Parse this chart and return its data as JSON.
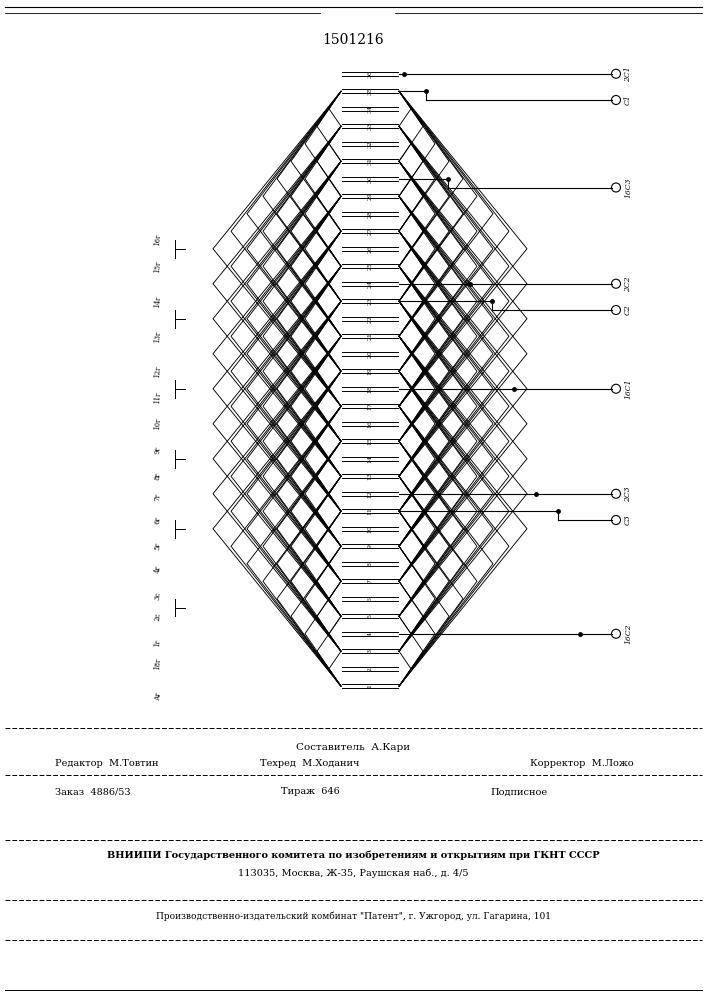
{
  "patent_number": "1501216",
  "left_labels": [
    [
      "Аг",
      0.5
    ],
    [
      "18г",
      2.3
    ],
    [
      "1г",
      3.5
    ],
    [
      "2с",
      5.0
    ],
    [
      "3с",
      6.2
    ],
    [
      "4г",
      7.7
    ],
    [
      "5г",
      9.0
    ],
    [
      "6г",
      10.5
    ],
    [
      "7г",
      11.8
    ],
    [
      "8г",
      13.0
    ],
    [
      "9г",
      14.5
    ],
    [
      "10г",
      16.0
    ],
    [
      "11г",
      17.5
    ],
    [
      "12г",
      19.0
    ],
    [
      "13г",
      21.0
    ],
    [
      "14г",
      23.0
    ],
    [
      "15г",
      25.0
    ],
    [
      "16г",
      26.5
    ]
  ],
  "bracket_slots": [
    5.5,
    10.0,
    14.0,
    18.0,
    22.0,
    26.0
  ],
  "slot_count": 36,
  "coil_pitches": [
    {
      "pitch": 2,
      "depth": 12,
      "step": 2
    },
    {
      "pitch": 4,
      "depth": 24,
      "step": 2
    },
    {
      "pitch": 6,
      "depth": 36,
      "step": 2
    },
    {
      "pitch": 8,
      "depth": 50,
      "step": 2
    },
    {
      "pitch": 10,
      "depth": 64,
      "step": 2
    },
    {
      "pitch": 12,
      "depth": 78,
      "step": 2
    },
    {
      "pitch": 14,
      "depth": 94,
      "step": 2
    },
    {
      "pitch": 16,
      "depth": 110,
      "step": 2
    },
    {
      "pitch": 18,
      "depth": 128,
      "step": 2
    }
  ],
  "right_connections": [
    {
      "label": "2С1",
      "tap_slot": 36,
      "term_slot": 36.0
    },
    {
      "label": "С1",
      "tap_slot": 35,
      "term_slot": 34.5
    },
    {
      "label": "16С3",
      "tap_slot": 30,
      "term_slot": 29.5
    },
    {
      "label": "2С2",
      "tap_slot": 24,
      "term_slot": 24.0
    },
    {
      "label": "С2",
      "tap_slot": 23,
      "term_slot": 22.5
    },
    {
      "label": "16С1",
      "tap_slot": 18,
      "term_slot": 18.0
    },
    {
      "label": "2С3",
      "tap_slot": 12,
      "term_slot": 12.0
    },
    {
      "label": "С3",
      "tap_slot": 11,
      "term_slot": 10.5
    },
    {
      "label": "16С2",
      "tap_slot": 4,
      "term_slot": 4.0
    }
  ],
  "footer_composer": "Составитель  А.Кари",
  "footer_editor": "Редактор  М.Товтин",
  "footer_techred": "Техред  М.Ходанич",
  "footer_corrector": "Корректор  М.Ложо",
  "footer_order": "Заказ  4886/53",
  "footer_print": "Тираж  646",
  "footer_signed": "Подписное",
  "footer_vniipи": "ВНИИПИ Государственного комитета по изобретениям и открытиям при ГКНТ СССР",
  "footer_address": "113035, Москва, Ж-35, Раушская наб., д. 4/5",
  "footer_publisher": "Производственно-издательский комбинат \"Патент\", г. Ужгород, ул. Гагарина, 101",
  "bg_color": "#ffffff",
  "line_color": "#000000"
}
